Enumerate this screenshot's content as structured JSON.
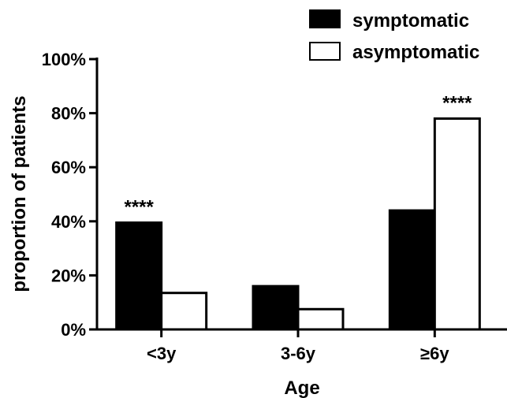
{
  "chart_data": {
    "type": "bar",
    "title": "",
    "xlabel": "Age",
    "ylabel": "proportion of patients",
    "categories": [
      "<3y",
      "3-6y",
      "≥6y"
    ],
    "ylim": [
      0,
      100
    ],
    "yticks": [
      "0%",
      "20%",
      "40%",
      "60%",
      "80%",
      "100%"
    ],
    "series": [
      {
        "name": "symptomatic",
        "values": [
          39.5,
          16,
          44
        ],
        "color": "#000000"
      },
      {
        "name": "asymptomatic",
        "values": [
          13.5,
          7.5,
          78
        ],
        "color": "#ffffff"
      }
    ],
    "annotations": [
      {
        "text": "****",
        "category_index": 0,
        "series_index": 0
      },
      {
        "text": "****",
        "category_index": 2,
        "series_index": 1
      }
    ],
    "legend_position": "top-right",
    "grid": false
  }
}
